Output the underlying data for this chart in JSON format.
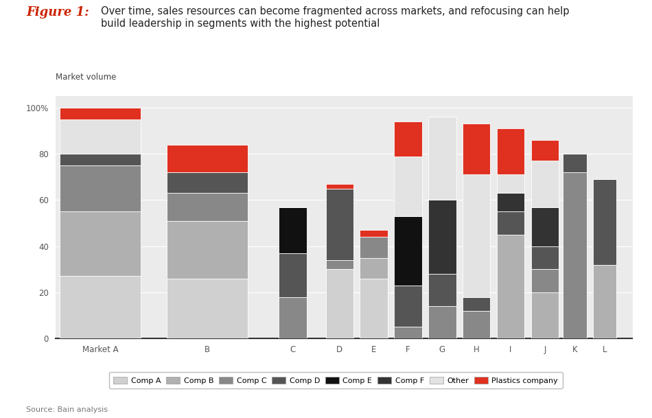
{
  "colors_seq": [
    "#d0d0d0",
    "#b0b0b0",
    "#888888",
    "#555555",
    "#111111",
    "#333333",
    "#e3e3e3",
    "#e03020"
  ],
  "labels": [
    "Comp A",
    "Comp B",
    "Comp C",
    "Comp D",
    "Comp E",
    "Comp F",
    "Other",
    "Plastics company"
  ],
  "categories": [
    "Market A",
    "B",
    "C",
    "D",
    "E",
    "F",
    "G",
    "H",
    "I",
    "J",
    "K",
    "L"
  ],
  "positions": [
    1.1,
    3.6,
    5.6,
    6.7,
    7.5,
    8.3,
    9.1,
    9.9,
    10.7,
    11.5,
    12.2,
    12.9
  ],
  "widths": [
    1.9,
    1.9,
    0.65,
    0.65,
    0.65,
    0.65,
    0.65,
    0.65,
    0.65,
    0.65,
    0.55,
    0.55
  ],
  "segments": [
    [
      27,
      28,
      20,
      5,
      0,
      0,
      15,
      5
    ],
    [
      26,
      25,
      12,
      9,
      0,
      0,
      0,
      12
    ],
    [
      0,
      0,
      18,
      19,
      20,
      0,
      0,
      0
    ],
    [
      30,
      0,
      4,
      31,
      0,
      0,
      0,
      2
    ],
    [
      26,
      9,
      9,
      0,
      0,
      0,
      0,
      3
    ],
    [
      0,
      0,
      5,
      18,
      30,
      0,
      26,
      15
    ],
    [
      0,
      0,
      14,
      14,
      0,
      32,
      36,
      0
    ],
    [
      0,
      0,
      12,
      6,
      0,
      0,
      53,
      22
    ],
    [
      0,
      45,
      0,
      10,
      0,
      8,
      8,
      20
    ],
    [
      0,
      20,
      10,
      10,
      0,
      17,
      20,
      9
    ],
    [
      0,
      0,
      72,
      8,
      0,
      0,
      0,
      0
    ],
    [
      0,
      32,
      0,
      37,
      0,
      0,
      0,
      0
    ]
  ],
  "yticks": [
    0,
    20,
    40,
    60,
    80,
    100
  ],
  "ylim": [
    0,
    105
  ],
  "background_color": "#ebebeb"
}
